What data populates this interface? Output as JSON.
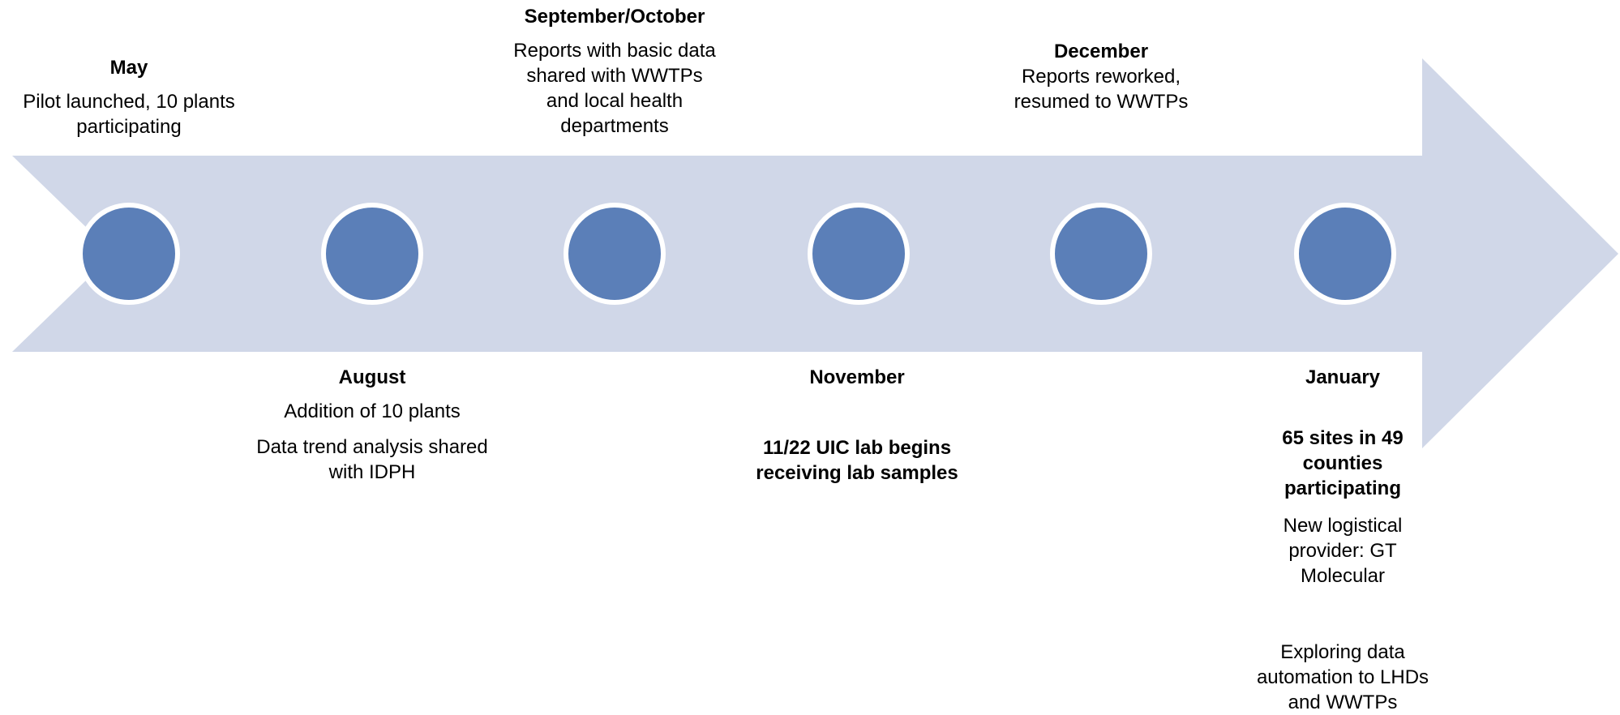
{
  "milestones": [
    {
      "month": "May",
      "details": [
        "Pilot launched, 10 plants participating"
      ]
    },
    {
      "month": "August",
      "details": [
        "Addition of 10 plants",
        "Data trend analysis shared with IDPH"
      ]
    },
    {
      "month": "September/October",
      "details": [
        "Reports with basic data shared with WWTPs and local health departments"
      ]
    },
    {
      "month": "November",
      "details": [
        "11/22 UIC lab begins receiving lab samples"
      ]
    },
    {
      "month": "December",
      "details": [
        "Reports reworked, resumed to WWTPs"
      ]
    },
    {
      "month": "January",
      "details": [
        "65 sites in 49 counties participating",
        "New logistical provider: GT Molecular",
        "Exploring data automation to LHDs and WWTPs"
      ]
    }
  ]
}
